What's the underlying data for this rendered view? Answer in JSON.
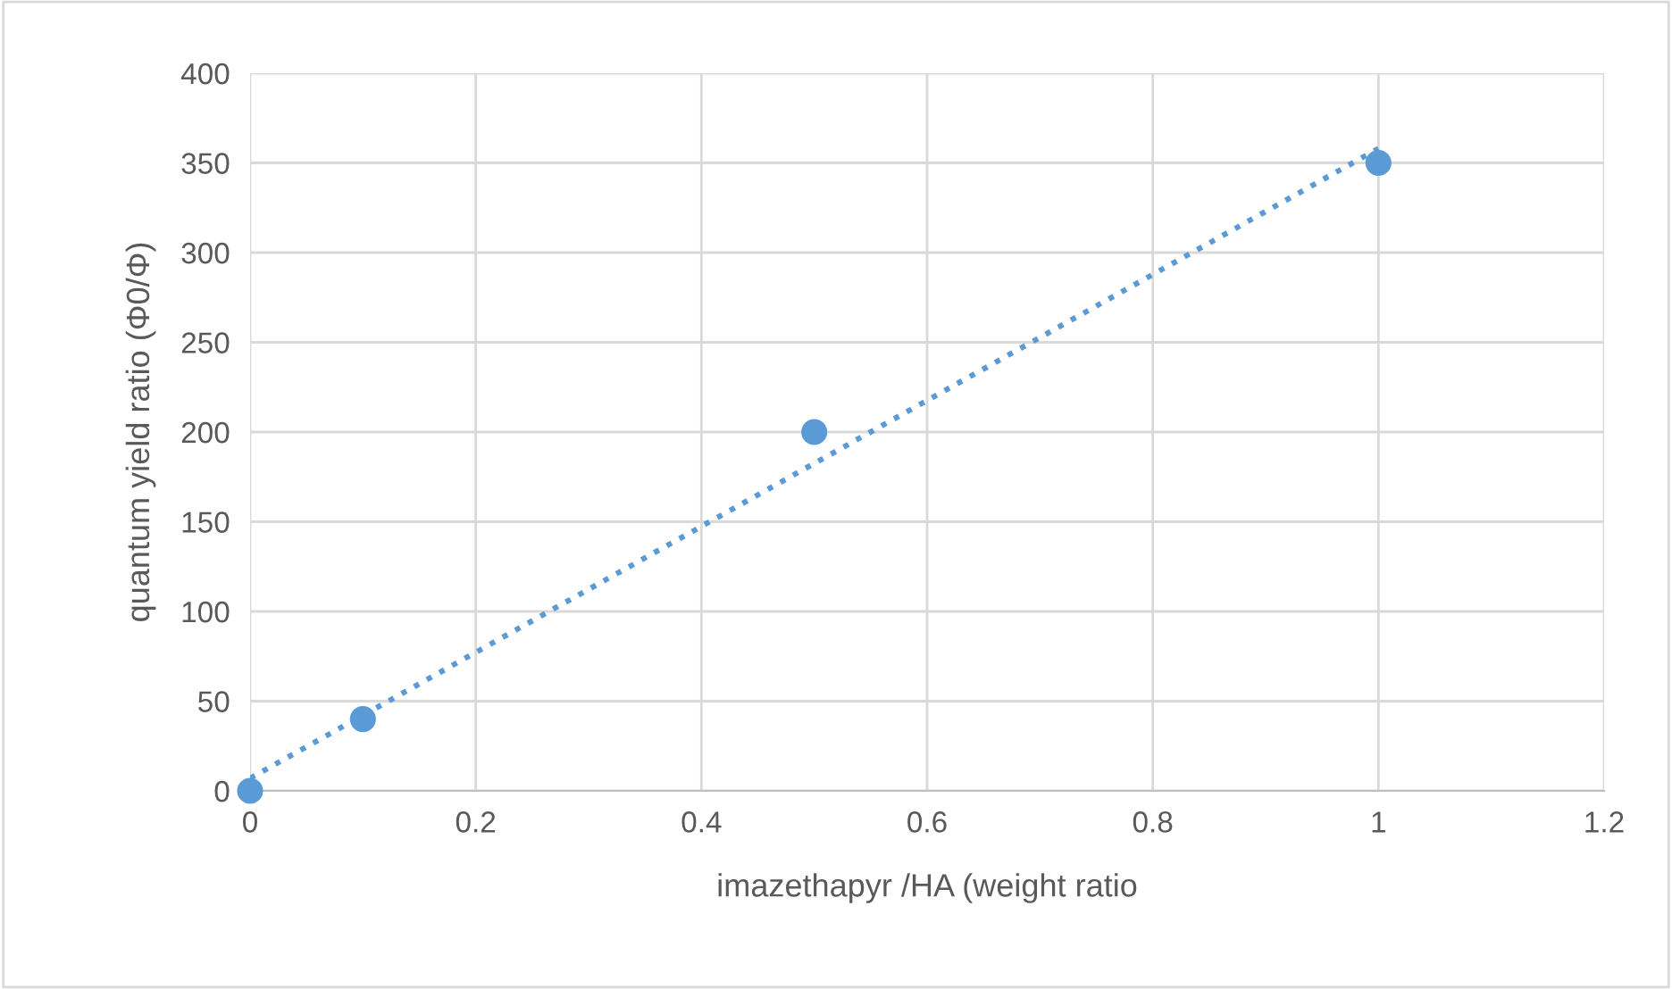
{
  "chart_data": {
    "type": "scatter",
    "xlabel": "imazethapyr /HA (weight ratio",
    "ylabel": "quantum yield ratio (Φ0/Φ)",
    "series": [
      {
        "color": "#5b9bd5",
        "x": [
          0,
          0.1,
          0.5,
          1
        ],
        "values": [
          0,
          40,
          200,
          350
        ],
        "marker": "circle"
      },
      {
        "type": "line",
        "color": "#5b9bd5",
        "x": [
          0,
          1
        ],
        "values": [
          7,
          358
        ],
        "line_style": "dotted",
        "marker": "none"
      }
    ],
    "xlim": [
      0,
      1.2
    ],
    "xticks": [
      0,
      0.2,
      0.4,
      0.6,
      0.8,
      1,
      1.2
    ],
    "ylim": [
      0,
      400
    ],
    "yticks": [
      0,
      50,
      100,
      150,
      200,
      250,
      300,
      350,
      400
    ],
    "grid": true,
    "legend": false
  }
}
